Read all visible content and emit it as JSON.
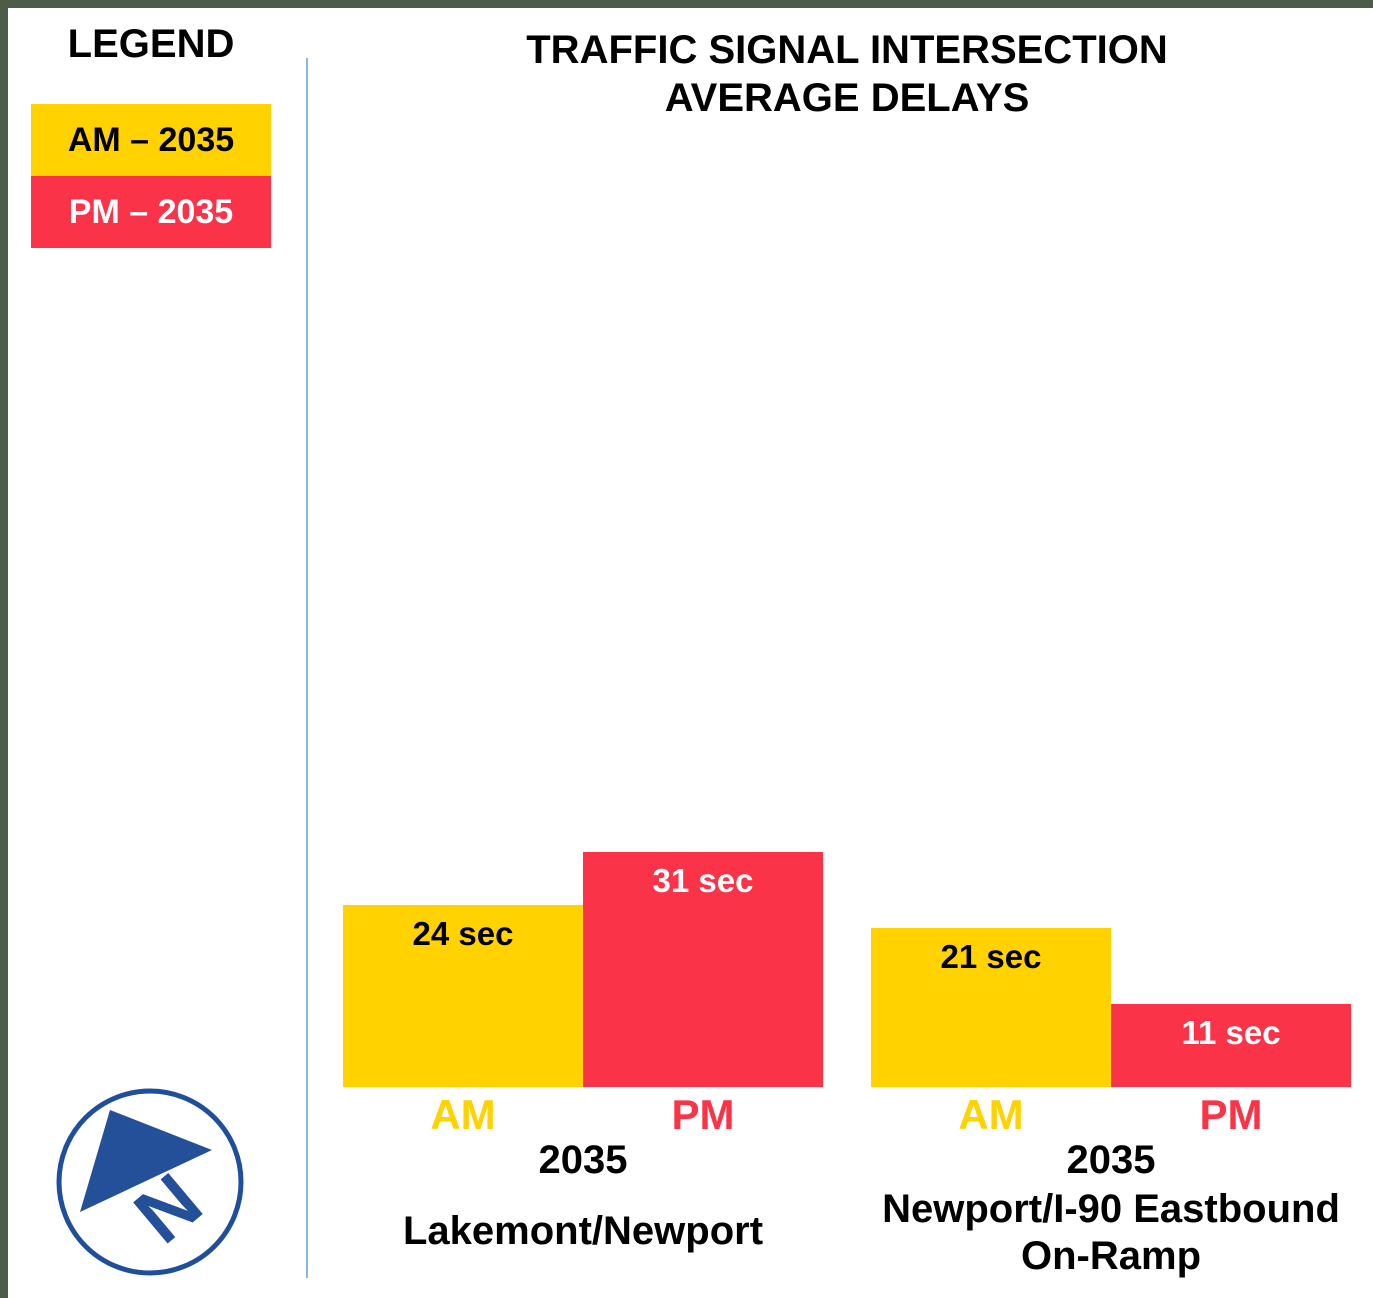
{
  "chart_data": {
    "type": "bar",
    "title": "TRAFFIC SIGNAL INTERSECTION AVERAGE DELAYS",
    "legend_title": "LEGEND",
    "categories": [
      "Lakemont/Newport",
      "Newport/I-90 Eastbound On-Ramp"
    ],
    "group_years": [
      "2035",
      "2035"
    ],
    "series": [
      {
        "name": "AM – 2035",
        "short_name": "AM",
        "color": "#FFD200",
        "values": [
          24,
          21
        ],
        "value_labels": [
          "24 sec",
          "21 sec"
        ]
      },
      {
        "name": "PM – 2035",
        "short_name": "PM",
        "color": "#FA3348",
        "values": [
          31,
          11
        ],
        "value_labels": [
          "31 sec",
          "11 sec"
        ]
      }
    ],
    "compass_label": "N"
  }
}
